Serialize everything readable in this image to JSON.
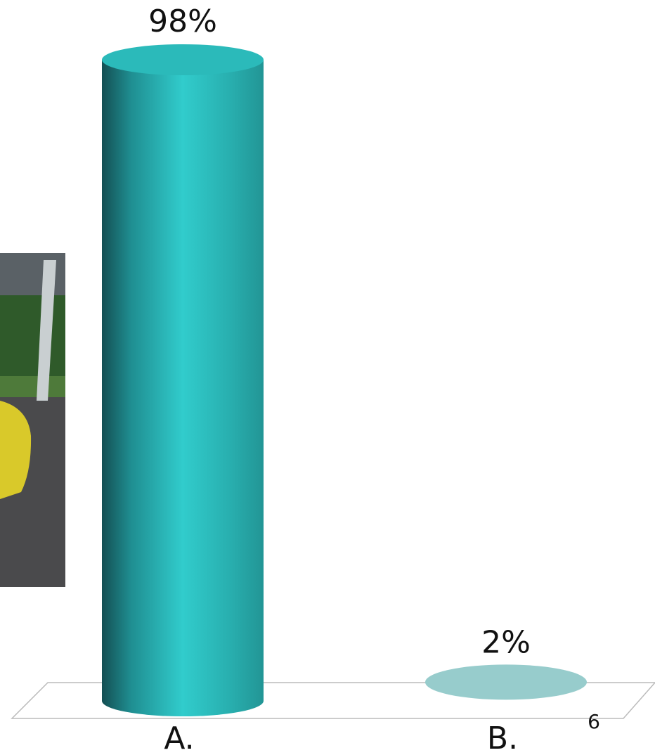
{
  "chart_data": {
    "type": "cylinder",
    "categories": [
      "A.",
      "B."
    ],
    "values": [
      98,
      2
    ],
    "value_labels": [
      "98%",
      "2%"
    ],
    "color": "#2bbaba"
  },
  "slide_number": "6"
}
